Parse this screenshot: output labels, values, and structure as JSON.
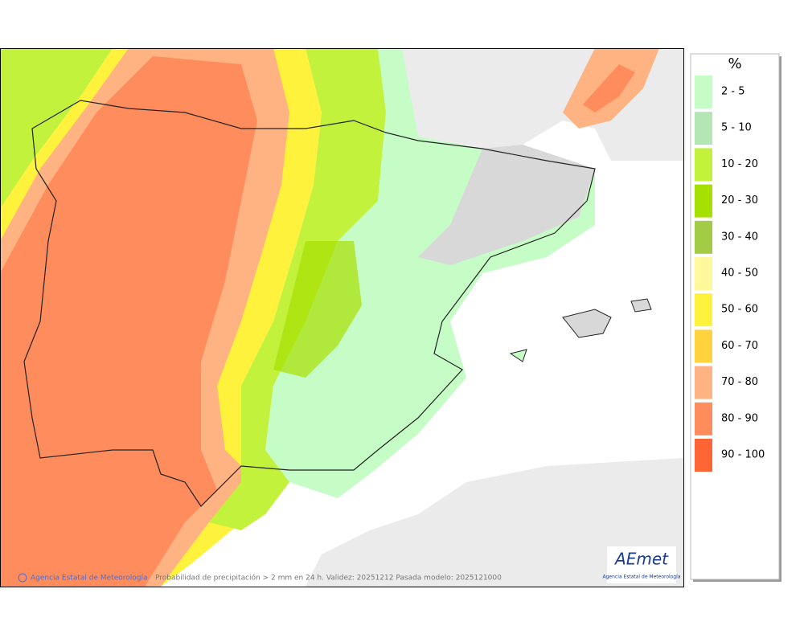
{
  "legend": {
    "title": "%",
    "items": [
      {
        "label": "2 - 5",
        "color": "#c6fcc6"
      },
      {
        "label": "5 - 10",
        "color": "#b2e6b4"
      },
      {
        "label": "10 - 20",
        "color": "#c2f23c"
      },
      {
        "label": "20 - 30",
        "color": "#a6e000"
      },
      {
        "label": "30 - 40",
        "color": "#a2cc46"
      },
      {
        "label": "40 - 50",
        "color": "#fff89c"
      },
      {
        "label": "50 - 60",
        "color": "#fff23c"
      },
      {
        "label": "60 - 70",
        "color": "#ffd23e"
      },
      {
        "label": "70 - 80",
        "color": "#ffb282"
      },
      {
        "label": "80 - 90",
        "color": "#ff8c5c"
      },
      {
        "label": "90 - 100",
        "color": "#ff6434"
      }
    ]
  },
  "footer": {
    "credit": "Agencia Estatal de Meteorología",
    "caption": "Probabilidad de precipitación > 2 mm en 24 h. Validez: 20251212 Pasada modelo: 2025121000"
  },
  "logo": {
    "name": "AEmet",
    "subtitle": "Agencia Estatal de Meteorología"
  }
}
